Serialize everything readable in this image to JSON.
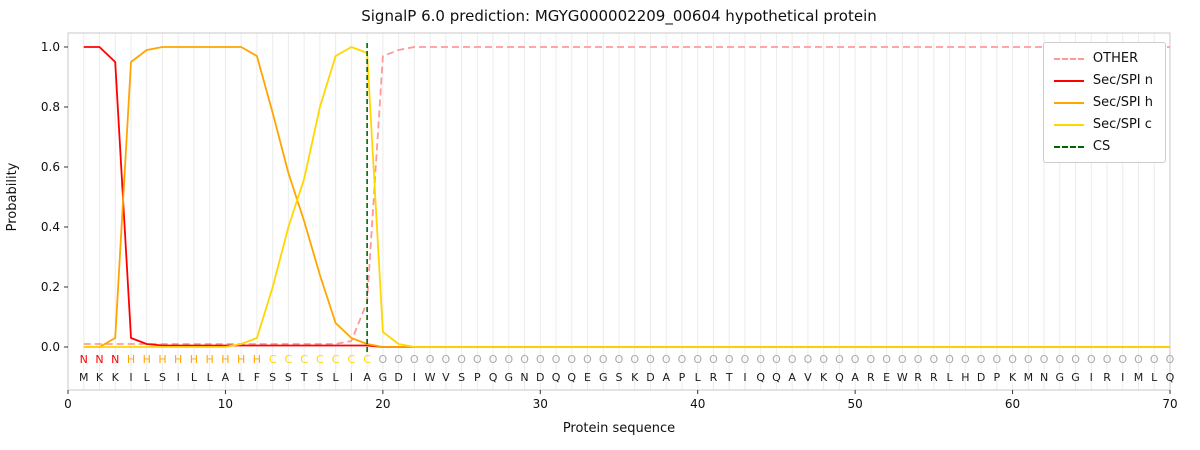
{
  "title": "SignalP 6.0 prediction: MGYG000002209_00604 hypothetical protein",
  "axes": {
    "x_label": "Protein sequence",
    "y_label": "Probability",
    "x_ticks": [
      0,
      10,
      20,
      30,
      40,
      50,
      60,
      70
    ],
    "y_ticks": [
      "0.0",
      "0.2",
      "0.4",
      "0.6",
      "0.8",
      "1.0"
    ]
  },
  "legend": {
    "entries": [
      {
        "label": "OTHER",
        "color": "#ff9999",
        "dashed": true
      },
      {
        "label": "Sec/SPI n",
        "color": "#ff0000",
        "dashed": false
      },
      {
        "label": "Sec/SPI h",
        "color": "#ffa500",
        "dashed": false
      },
      {
        "label": "Sec/SPI c",
        "color": "#ffd700",
        "dashed": false
      },
      {
        "label": "CS",
        "color": "#006400",
        "dashed": true
      }
    ]
  },
  "chart_data": {
    "type": "line",
    "title": "SignalP 6.0 prediction: MGYG000002209_00604 hypothetical protein",
    "xlabel": "Protein sequence",
    "ylabel": "Probability",
    "xlim": [
      0,
      70
    ],
    "ylim": [
      0,
      1.0
    ],
    "x_range": [
      1,
      70
    ],
    "grid": "vertical-per-residue",
    "legend_position": "upper-right",
    "cs_position": 19,
    "cs_color": "#006400",
    "style": {
      "grid_color": "#ececec",
      "frame_color": "#c8c8c8"
    },
    "series": [
      {
        "name": "OTHER",
        "color": "#ff9999",
        "dash": "7 4",
        "values": [
          0.01,
          0.01,
          0.01,
          0.01,
          0.01,
          0.01,
          0.01,
          0.01,
          0.01,
          0.01,
          0.01,
          0.01,
          0.01,
          0.01,
          0.01,
          0.01,
          0.01,
          0.02,
          0.15,
          0.97,
          0.99,
          1,
          1,
          1,
          1,
          1,
          1,
          1,
          1,
          1,
          1,
          1,
          1,
          1,
          1,
          1,
          1,
          1,
          1,
          1,
          1,
          1,
          1,
          1,
          1,
          1,
          1,
          1,
          1,
          1,
          1,
          1,
          1,
          1,
          1,
          1,
          1,
          1,
          1,
          1,
          1,
          1,
          1,
          1,
          1,
          1,
          1,
          1,
          1,
          1
        ]
      },
      {
        "name": "Sec/SPI n",
        "color": "#ff0000",
        "dash": null,
        "values": [
          1,
          1,
          0.95,
          0.03,
          0.01,
          0.005,
          0.005,
          0.005,
          0.005,
          0.005,
          0.005,
          0.005,
          0.005,
          0.005,
          0.005,
          0.005,
          0.005,
          0.005,
          0.005,
          0,
          0,
          0,
          0,
          0,
          0,
          0,
          0,
          0,
          0,
          0,
          0,
          0,
          0,
          0,
          0,
          0,
          0,
          0,
          0,
          0,
          0,
          0,
          0,
          0,
          0,
          0,
          0,
          0,
          0,
          0,
          0,
          0,
          0,
          0,
          0,
          0,
          0,
          0,
          0,
          0,
          0,
          0,
          0,
          0,
          0,
          0,
          0,
          0,
          0,
          0
        ]
      },
      {
        "name": "Sec/SPI h",
        "color": "#ffa500",
        "dash": null,
        "values": [
          0,
          0,
          0.03,
          0.95,
          0.99,
          1,
          1,
          1,
          1,
          1,
          1,
          0.97,
          0.78,
          0.58,
          0.42,
          0.24,
          0.08,
          0.03,
          0.01,
          0,
          0,
          0,
          0,
          0,
          0,
          0,
          0,
          0,
          0,
          0,
          0,
          0,
          0,
          0,
          0,
          0,
          0,
          0,
          0,
          0,
          0,
          0,
          0,
          0,
          0,
          0,
          0,
          0,
          0,
          0,
          0,
          0,
          0,
          0,
          0,
          0,
          0,
          0,
          0,
          0,
          0,
          0,
          0,
          0,
          0,
          0,
          0,
          0,
          0,
          0
        ]
      },
      {
        "name": "Sec/SPI c",
        "color": "#ffd700",
        "dash": null,
        "values": [
          0,
          0,
          0,
          0,
          0,
          0,
          0,
          0,
          0,
          0,
          0.01,
          0.03,
          0.2,
          0.4,
          0.56,
          0.8,
          0.97,
          1,
          0.98,
          0.05,
          0.01,
          0,
          0,
          0,
          0,
          0,
          0,
          0,
          0,
          0,
          0,
          0,
          0,
          0,
          0,
          0,
          0,
          0,
          0,
          0,
          0,
          0,
          0,
          0,
          0,
          0,
          0,
          0,
          0,
          0,
          0,
          0,
          0,
          0,
          0,
          0,
          0,
          0,
          0,
          0,
          0,
          0,
          0,
          0,
          0,
          0,
          0,
          0,
          0,
          0
        ]
      }
    ],
    "sequence": [
      "M",
      "K",
      "K",
      "I",
      "L",
      "S",
      "I",
      "L",
      "L",
      "A",
      "L",
      "F",
      "S",
      "S",
      "T",
      "S",
      "L",
      "I",
      "A",
      "G",
      "D",
      "I",
      "W",
      "V",
      "S",
      "P",
      "Q",
      "G",
      "N",
      "D",
      "Q",
      "Q",
      "E",
      "G",
      "S",
      "K",
      "D",
      "A",
      "P",
      "L",
      "R",
      "T",
      "I",
      "Q",
      "Q",
      "A",
      "V",
      "K",
      "Q",
      "A",
      "R",
      "E",
      "W",
      "R",
      "R",
      "L",
      "H",
      "D",
      "P",
      "K",
      "M",
      "N",
      "G",
      "G",
      "I",
      "R",
      "I",
      "M",
      "L",
      "Q"
    ],
    "region_labels": [
      "N",
      "N",
      "N",
      "H",
      "H",
      "H",
      "H",
      "H",
      "H",
      "H",
      "H",
      "H",
      "C",
      "C",
      "C",
      "C",
      "C",
      "C",
      "C",
      "O",
      "O",
      "O",
      "O",
      "O",
      "O",
      "O",
      "O",
      "O",
      "O",
      "O",
      "O",
      "O",
      "O",
      "O",
      "O",
      "O",
      "O",
      "O",
      "O",
      "O",
      "O",
      "O",
      "O",
      "O",
      "O",
      "O",
      "O",
      "O",
      "O",
      "O",
      "O",
      "O",
      "O",
      "O",
      "O",
      "O",
      "O",
      "O",
      "O",
      "O",
      "O",
      "O",
      "O",
      "O",
      "O",
      "O",
      "O",
      "O",
      "O",
      "O"
    ],
    "label_colors": {
      "N": "#ff0000",
      "H": "#ffa500",
      "C": "#ffd700",
      "O": "#aaaaaa"
    },
    "residue_color": "#1a1a1a"
  }
}
